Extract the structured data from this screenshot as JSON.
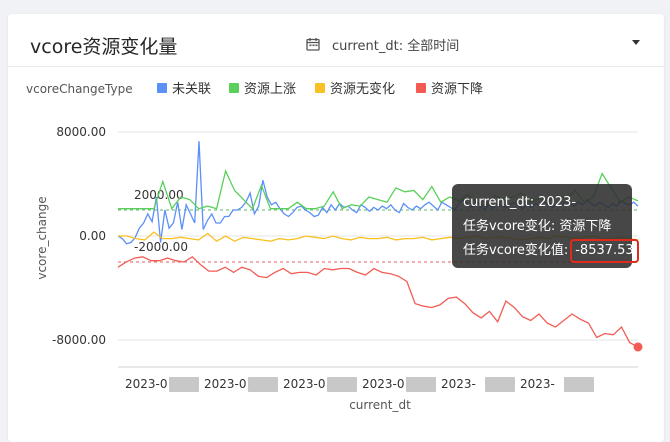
{
  "title": "vcore资源变化量",
  "filter": {
    "label": "current_dt: 全部时间",
    "icon": "calendar-icon"
  },
  "chart_data": {
    "type": "line",
    "ylabel": "vcore_change",
    "xlabel": "current_dt",
    "legend_title": "vcoreChangeType",
    "legend_position": "top-left",
    "ylim": [
      -10000,
      10000
    ],
    "yticks": [
      8000,
      0,
      -8000
    ],
    "ytick_labels": [
      "8000.00",
      "0.00",
      "-8000.00"
    ],
    "xtick_labels": [
      "2023-0",
      "2023-0",
      "2023-0",
      "2023-0",
      "2023-",
      "2023-"
    ],
    "reference_lines": [
      {
        "value": 2000,
        "label": "2000.00",
        "color": "#5ab863"
      },
      {
        "value": -2000,
        "label": "-2000.00",
        "color": "#e06060"
      }
    ],
    "series": [
      {
        "name": "未关联",
        "color": "#5b8ff9",
        "values": [
          0,
          -200,
          -600,
          -500,
          -150,
          600,
          1000,
          1700,
          1100,
          3000,
          -500,
          2000,
          600,
          1000,
          2600,
          500,
          2400,
          1700,
          1000,
          7300,
          500,
          1200,
          1700,
          1000,
          1000,
          1500,
          1500,
          2000,
          2000,
          2200,
          2600,
          3300,
          1700,
          2300,
          4300,
          3000,
          2400,
          2600,
          2100,
          1700,
          1500,
          1800,
          2200,
          2300,
          2000,
          1800,
          1500,
          1600,
          2200,
          1800,
          2400,
          2000,
          2500,
          2200,
          2300,
          2000,
          1800,
          2400,
          2200,
          1900,
          2200,
          2000,
          2300,
          2100,
          2400,
          2000,
          1800,
          2500,
          2200,
          2000,
          2300,
          2100,
          2400,
          2600,
          2300,
          2000,
          2600,
          2400,
          2200,
          2000,
          2500,
          2800,
          2400,
          2200,
          2600,
          2300,
          2000,
          2400,
          2100,
          2500,
          2300,
          2200,
          2400,
          2600,
          2300,
          2100,
          2400,
          2200,
          2500,
          2300,
          2600,
          2400,
          2200,
          2500,
          2300,
          2700,
          2500,
          2300,
          2600,
          2400,
          2800,
          2500,
          2300,
          2600,
          2400,
          2200,
          2500,
          2300,
          2700,
          2500,
          2400,
          2600,
          2300
        ]
      },
      {
        "name": "资源上涨",
        "color": "#5ad05a",
        "values": [
          2100,
          2100,
          2100,
          2100,
          2100,
          4200,
          2100,
          3000,
          2800,
          2100,
          2300,
          2100,
          5000,
          3500,
          2800,
          2100,
          3900,
          2100,
          2100,
          2100,
          2600,
          2100,
          2100,
          2300,
          3400,
          2100,
          2400,
          2300,
          3000,
          2800,
          2600,
          3700,
          3400,
          3500,
          2800,
          3800,
          2600,
          3000,
          2700,
          3200,
          2600,
          2300,
          3100,
          2800,
          3000,
          3300,
          2600,
          2900,
          2700,
          3100,
          2900,
          3500,
          2600,
          3000,
          4800,
          3700,
          2600,
          3000,
          2700
        ]
      },
      {
        "name": "资源无变化",
        "color": "#f7c122",
        "values": [
          0,
          0,
          -200,
          -300,
          300,
          -200,
          -200,
          -100,
          -200,
          -300,
          200,
          -400,
          0,
          -400,
          -100,
          -200,
          -300,
          -400,
          -200,
          -300,
          -200,
          0,
          -100,
          -200,
          0,
          -200,
          -300,
          -100,
          -200,
          -200,
          -100,
          -300,
          -200,
          -200,
          -100,
          -300,
          -200,
          -100,
          -200,
          -100,
          0,
          -200,
          -100,
          -100,
          -200,
          -300,
          -200,
          -100,
          -200,
          0,
          -100,
          -200,
          -100,
          0,
          -200,
          -200,
          -100,
          -200,
          -300
        ]
      },
      {
        "name": "资源下降",
        "color": "#f25c54",
        "values": [
          -2400,
          -2000,
          -1700,
          -1600,
          -1900,
          -1900,
          -1700,
          -1900,
          -2000,
          -1600,
          -2200,
          -2700,
          -2700,
          -2400,
          -2800,
          -2400,
          -2600,
          -3100,
          -3200,
          -2800,
          -2500,
          -2900,
          -2800,
          -2800,
          -3000,
          -2500,
          -2600,
          -2500,
          -2500,
          -2800,
          -3000,
          -2500,
          -2800,
          -2900,
          -3100,
          -3500,
          -5200,
          -5400,
          -5500,
          -5300,
          -4800,
          -4700,
          -5200,
          -5900,
          -6300,
          -5800,
          -6600,
          -5000,
          -5500,
          -6200,
          -6500,
          -6000,
          -6700,
          -7000,
          -6500,
          -6000,
          -6400,
          -6700,
          -7800,
          -7500,
          -7600,
          -7000,
          -8200,
          -8537.53
        ]
      }
    ],
    "highlight": {
      "series": "资源下降",
      "value": -8537.53
    }
  },
  "tooltip": {
    "row1": "current_dt: 2023-",
    "row2": "任务vcore变化: 资源下降",
    "row3_label": "任务vcore变化值:",
    "row3_value": "-8537.53"
  }
}
